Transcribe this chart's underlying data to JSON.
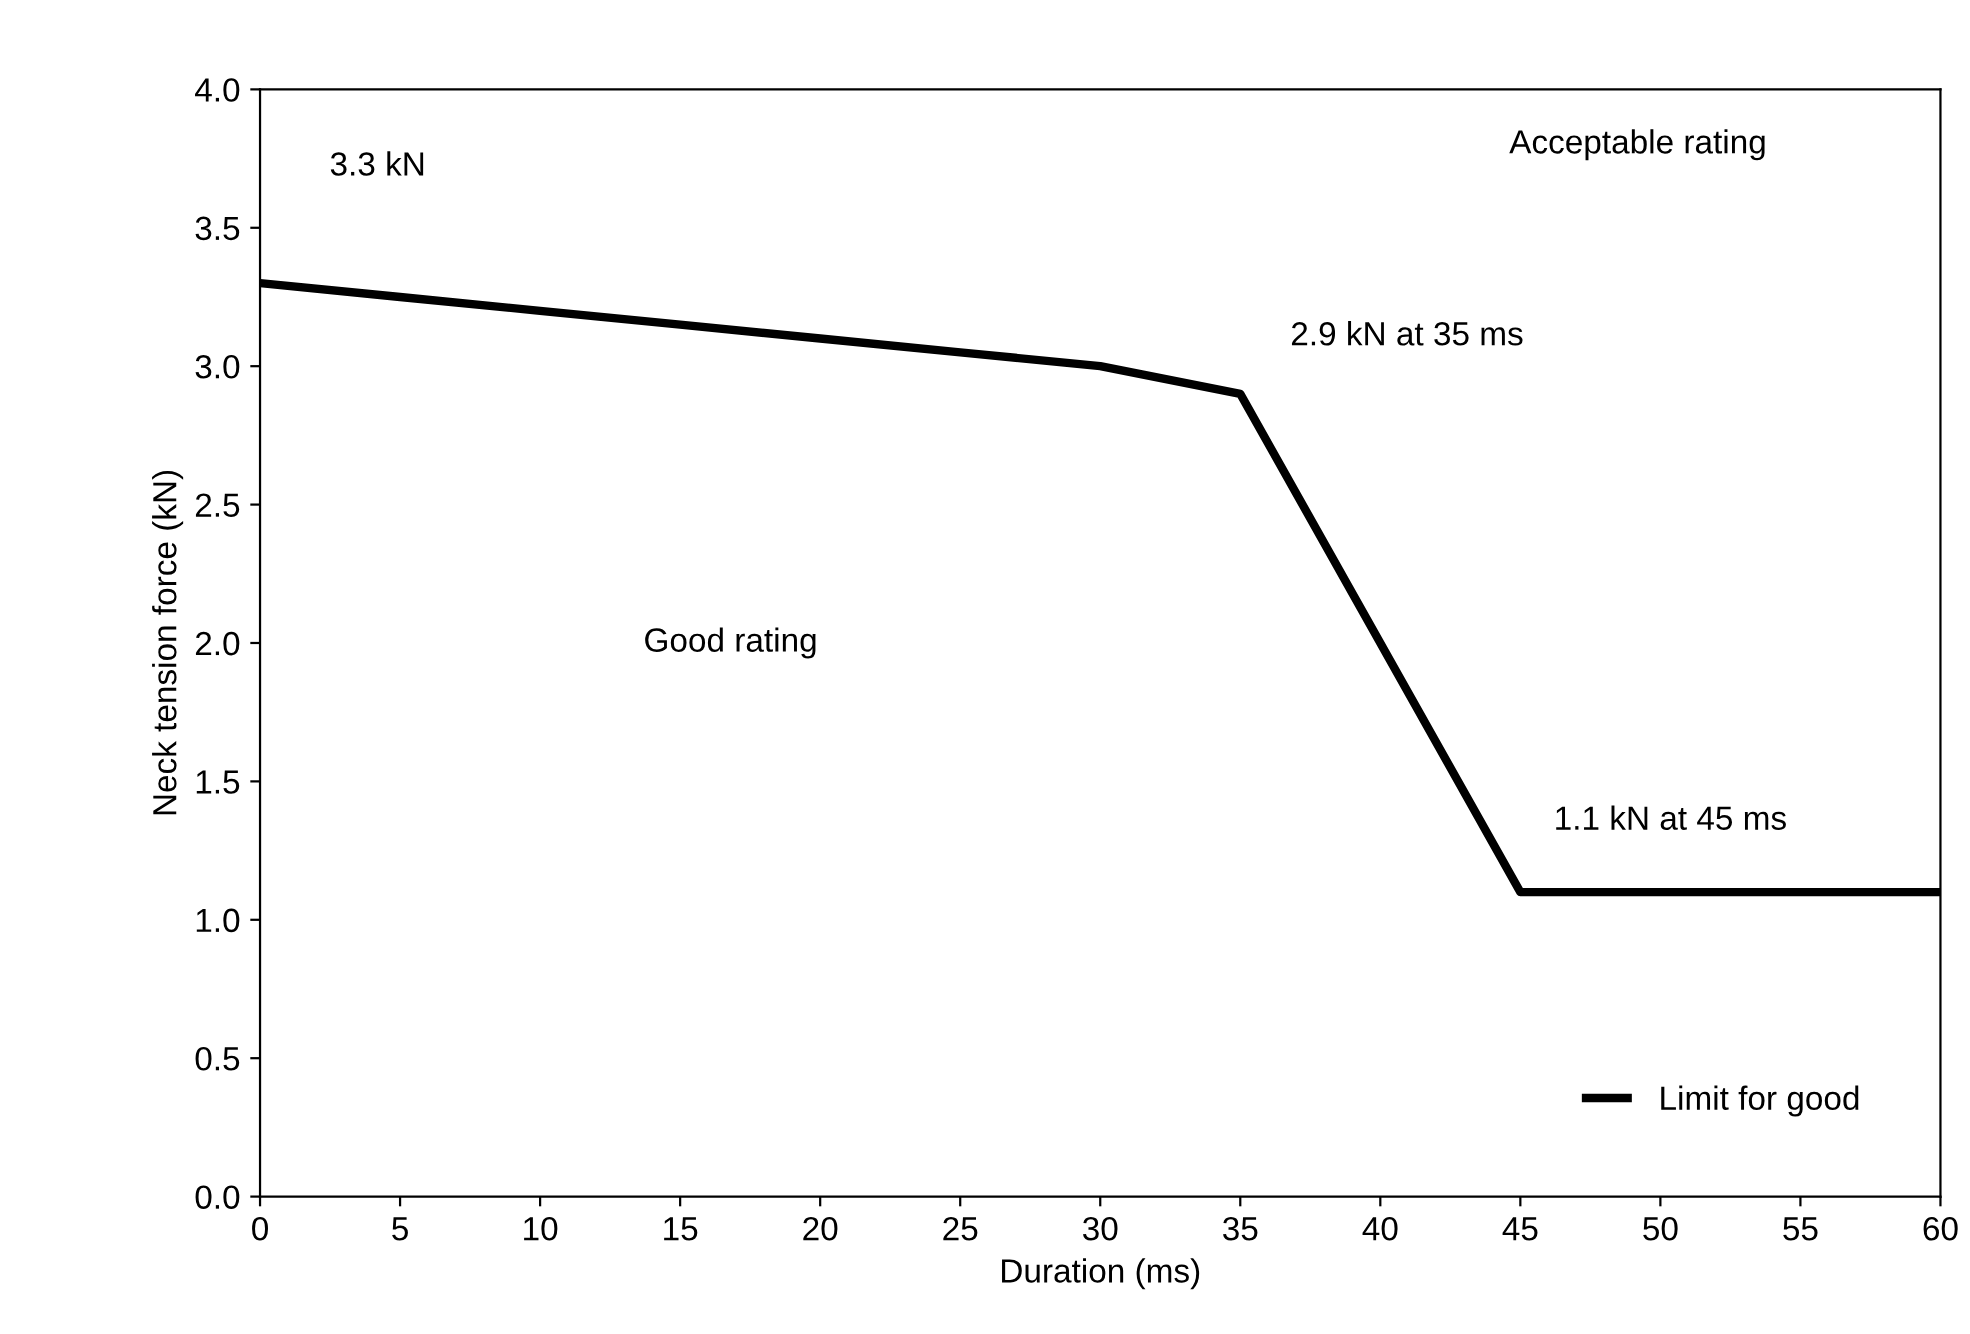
{
  "chart_data": {
    "type": "line",
    "xlabel": "Duration (ms)",
    "ylabel": "Neck tension force (kN)",
    "x": [
      0,
      5,
      10,
      15,
      20,
      25,
      30,
      35,
      45,
      60
    ],
    "series": [
      {
        "name": "Limit for good",
        "color": "#000000",
        "values": [
          3.3,
          3.25,
          3.2,
          3.15,
          3.1,
          3.05,
          3.0,
          2.9,
          1.1,
          1.1
        ]
      }
    ],
    "xlim": [
      0,
      60
    ],
    "xticks": [
      0,
      5,
      10,
      15,
      20,
      25,
      30,
      35,
      40,
      45,
      50,
      55,
      60
    ],
    "ylim": [
      0,
      4
    ],
    "yticks": [
      {
        "value": 0,
        "label": "0.0"
      },
      {
        "value": 0.5,
        "label": "0.5"
      },
      {
        "value": 1,
        "label": "1.0"
      },
      {
        "value": 1.5,
        "label": "1.5"
      },
      {
        "value": 2,
        "label": "2.0"
      },
      {
        "value": 2.5,
        "label": "2.5"
      },
      {
        "value": 3,
        "label": "3.0"
      },
      {
        "value": 3.5,
        "label": "3.5"
      },
      {
        "value": 4,
        "label": "4.0"
      }
    ],
    "annotations": [
      "3.3 kN",
      {
        "text": "2.9 kN at 35 ms",
        "x": 35,
        "y": 2.9
      },
      {
        "text": "1.1 kN at 45 ms",
        "x": 45,
        "y": 1.1
      },
      "Acceptable rating",
      "Good rating"
    ],
    "grid": false,
    "legend": "bottom right",
    "marker": "none",
    "line_style": "solid"
  }
}
